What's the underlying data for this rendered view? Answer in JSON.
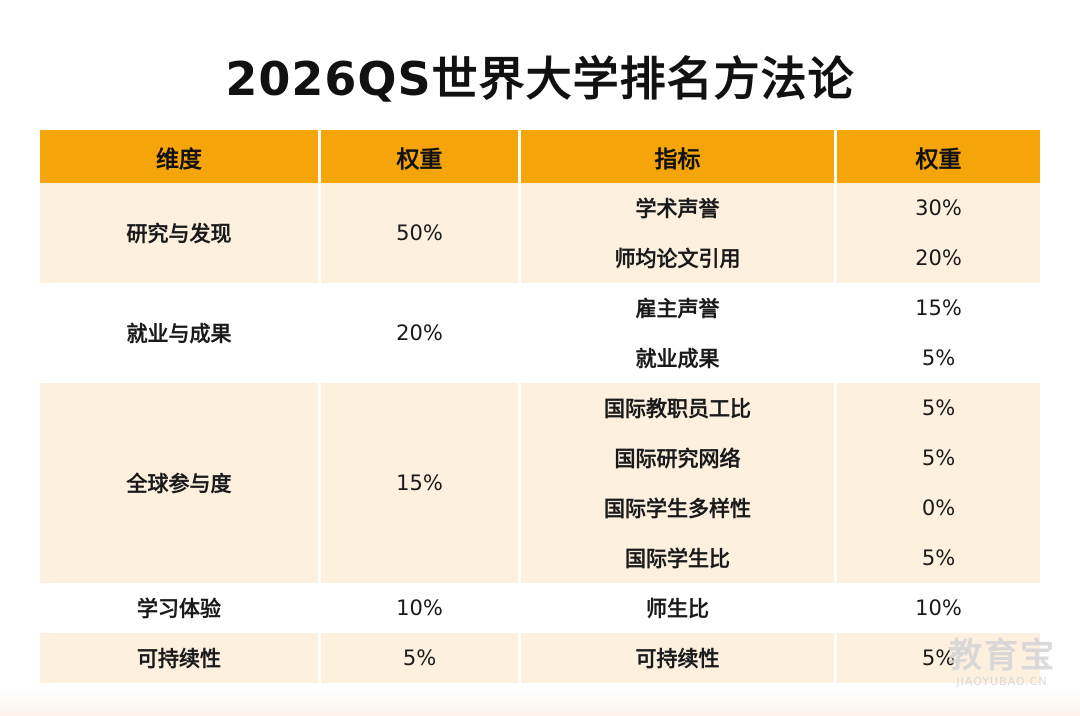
{
  "title": "2026QS世界大学排名方法论",
  "table": {
    "headers": [
      "维度",
      "权重",
      "指标",
      "权重"
    ],
    "dimensions": [
      {
        "name": "研究与发现",
        "weight": "50%"
      },
      {
        "name": "就业与成果",
        "weight": "20%"
      },
      {
        "name": "全球参与度",
        "weight": "15%"
      },
      {
        "name": "学习体验",
        "weight": "10%"
      },
      {
        "name": "可持续性",
        "weight": "5%"
      }
    ],
    "indicators": [
      {
        "name": "学术声誉",
        "weight": "30%"
      },
      {
        "name": "师均论文引用",
        "weight": "20%"
      },
      {
        "name": "雇主声誉",
        "weight": "15%"
      },
      {
        "name": "就业成果",
        "weight": "5%"
      },
      {
        "name": "国际教职员工比",
        "weight": "5%"
      },
      {
        "name": "国际研究网络",
        "weight": "5%"
      },
      {
        "name": "国际学生多样性",
        "weight": "0%"
      },
      {
        "name": "国际学生比",
        "weight": "5%"
      },
      {
        "name": "师生比",
        "weight": "10%"
      },
      {
        "name": "可持续性",
        "weight": "5%"
      }
    ]
  },
  "watermark": {
    "main": "教育宝",
    "sub": "JIAOYUBAO.CN"
  }
}
